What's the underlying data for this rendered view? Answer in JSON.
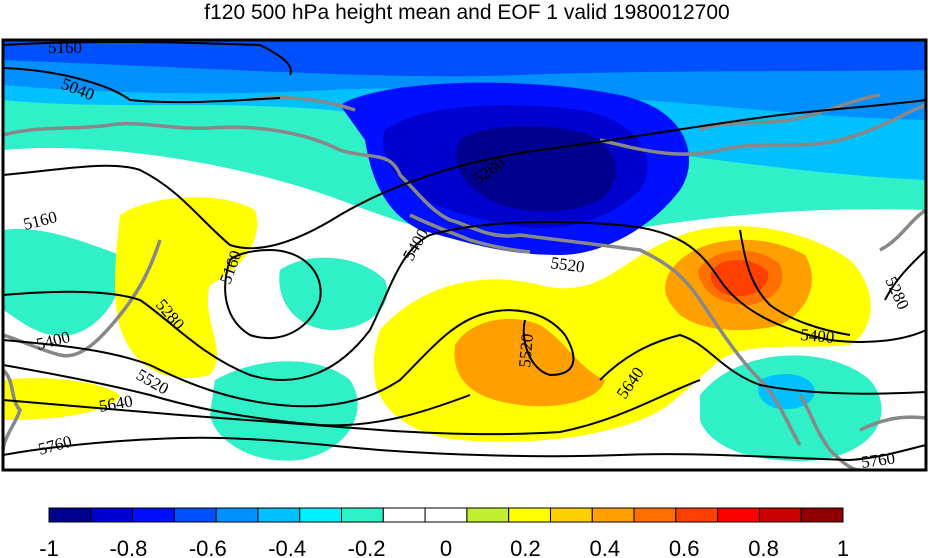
{
  "title": "f120 500 hPa height mean and EOF 1 valid 1980012700",
  "contour_labels": [
    "5160",
    "5040",
    "5160",
    "5160",
    "5280",
    "5400",
    "5520",
    "5640",
    "5760",
    "5280",
    "5400",
    "5520",
    "5520",
    "5640",
    "5400",
    "5280",
    "5760"
  ],
  "colorbar": {
    "ticks": [
      "-1",
      "-0.8",
      "-0.6",
      "-0.4",
      "-0.2",
      "0",
      "0.2",
      "0.4",
      "0.6",
      "0.8",
      "1"
    ],
    "colors": [
      "#00008f",
      "#0000cf",
      "#0010ff",
      "#0050ff",
      "#0090ff",
      "#00c0ff",
      "#00f0ff",
      "#30f0c8",
      "#ffffff",
      "#ffffff",
      "#c0f030",
      "#ffff00",
      "#ffd000",
      "#ffa000",
      "#ff7000",
      "#ff4000",
      "#ff0000",
      "#c80000",
      "#8f0000"
    ]
  },
  "colors": {
    "coastline": "#888888",
    "contour": "#000000",
    "frame": "#000000"
  }
}
